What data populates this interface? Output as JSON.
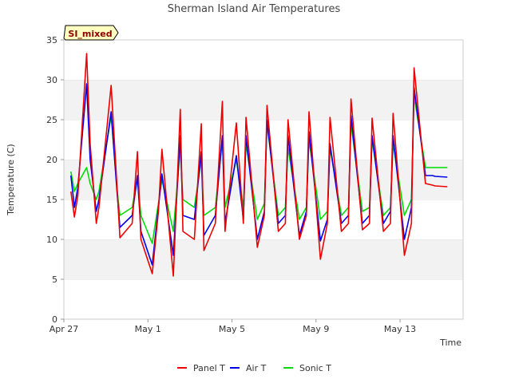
{
  "chart_data": {
    "type": "line",
    "title": "Sherman Island Air Temperatures",
    "xlabel": "Time",
    "ylabel": "Temperature (C)",
    "ylim": [
      0,
      35
    ],
    "xlim": [
      "2023-04-27",
      "2023-05-16"
    ],
    "x_ticks": [
      "Apr 27",
      "May 1",
      "May 5",
      "May 9",
      "May 13"
    ],
    "y_ticks": [
      0,
      5,
      10,
      15,
      20,
      25,
      30,
      35
    ],
    "grid": "alternating horizontal bands",
    "legend": "bottom-center",
    "badge": "SI_mixed",
    "series": [
      {
        "name": "Panel T",
        "color": "#ee0000",
        "x": [
          "2023-04-27T08:00",
          "2023-04-27T12:00",
          "2023-04-27T16:00",
          "2023-04-28T02:00",
          "2023-04-28T06:00",
          "2023-04-28T13:00",
          "2023-04-28T16:00",
          "2023-04-29T06:00",
          "2023-04-29T13:00",
          "2023-04-29T16:00",
          "2023-04-30T06:00",
          "2023-04-30T12:00",
          "2023-04-30T16:00",
          "2023-05-01T05:00",
          "2023-05-01T12:00",
          "2023-05-01T16:00",
          "2023-05-02T05:00",
          "2023-05-02T13:00",
          "2023-05-02T16:00",
          "2023-05-03T05:00",
          "2023-05-03T13:00",
          "2023-05-03T16:00",
          "2023-05-04T05:00",
          "2023-05-04T13:00",
          "2023-05-04T16:00",
          "2023-05-05T05:00",
          "2023-05-05T13:00",
          "2023-05-05T16:00",
          "2023-05-06T05:00",
          "2023-05-06T13:00",
          "2023-05-06T16:00",
          "2023-05-07T05:00",
          "2023-05-07T13:00",
          "2023-05-07T16:00",
          "2023-05-08T05:00",
          "2023-05-08T13:00",
          "2023-05-08T16:00",
          "2023-05-09T05:00",
          "2023-05-09T13:00",
          "2023-05-09T16:00",
          "2023-05-10T05:00",
          "2023-05-10T13:00",
          "2023-05-10T16:00",
          "2023-05-11T05:00",
          "2023-05-11T13:00",
          "2023-05-11T16:00",
          "2023-05-12T05:00",
          "2023-05-12T13:00",
          "2023-05-12T16:00",
          "2023-05-13T05:00",
          "2023-05-13T13:00",
          "2023-05-13T16:00",
          "2023-05-14T05:00",
          "2023-05-14T13:00",
          "2023-05-14T16:00",
          "2023-05-15T06:00"
        ],
        "values": [
          16.0,
          12.8,
          15.5,
          33.3,
          22.0,
          12.0,
          14.0,
          29.3,
          16.0,
          10.2,
          12.0,
          21.0,
          10.0,
          5.7,
          13.5,
          21.3,
          5.4,
          26.3,
          11.0,
          10.0,
          24.5,
          8.6,
          12.0,
          27.3,
          11.0,
          24.6,
          12.0,
          25.3,
          9.0,
          13.0,
          26.8,
          11.0,
          12.0,
          25.0,
          10.0,
          13.0,
          26.0,
          7.5,
          12.0,
          25.3,
          11.0,
          12.0,
          27.6,
          11.2,
          12.0,
          25.2,
          11.0,
          12.0,
          25.8,
          8.0,
          12.0,
          31.5,
          17.0,
          16.8,
          16.7,
          16.6
        ]
      },
      {
        "name": "Air T",
        "color": "#0000ee",
        "x": [
          "2023-04-27T08:00",
          "2023-04-27T12:00",
          "2023-04-27T16:00",
          "2023-04-28T02:00",
          "2023-04-28T06:00",
          "2023-04-28T13:00",
          "2023-04-28T16:00",
          "2023-04-29T06:00",
          "2023-04-29T13:00",
          "2023-04-29T16:00",
          "2023-04-30T06:00",
          "2023-04-30T12:00",
          "2023-04-30T16:00",
          "2023-05-01T05:00",
          "2023-05-01T12:00",
          "2023-05-01T16:00",
          "2023-05-02T05:00",
          "2023-05-02T13:00",
          "2023-05-02T16:00",
          "2023-05-03T05:00",
          "2023-05-03T13:00",
          "2023-05-03T16:00",
          "2023-05-04T05:00",
          "2023-05-04T13:00",
          "2023-05-04T16:00",
          "2023-05-05T05:00",
          "2023-05-05T13:00",
          "2023-05-05T16:00",
          "2023-05-06T05:00",
          "2023-05-06T13:00",
          "2023-05-06T16:00",
          "2023-05-07T05:00",
          "2023-05-07T13:00",
          "2023-05-07T16:00",
          "2023-05-08T05:00",
          "2023-05-08T13:00",
          "2023-05-08T16:00",
          "2023-05-09T05:00",
          "2023-05-09T13:00",
          "2023-05-09T16:00",
          "2023-05-10T05:00",
          "2023-05-10T13:00",
          "2023-05-10T16:00",
          "2023-05-11T05:00",
          "2023-05-11T13:00",
          "2023-05-11T16:00",
          "2023-05-12T05:00",
          "2023-05-12T13:00",
          "2023-05-12T16:00",
          "2023-05-13T05:00",
          "2023-05-13T13:00",
          "2023-05-13T16:00",
          "2023-05-14T05:00",
          "2023-05-14T13:00",
          "2023-05-14T16:00",
          "2023-05-15T06:00"
        ],
        "values": [
          18.0,
          14.0,
          16.5,
          29.5,
          20.0,
          13.5,
          15.0,
          26.0,
          15.5,
          11.5,
          13.0,
          18.0,
          11.0,
          6.8,
          14.0,
          18.2,
          8.0,
          23.0,
          13.0,
          12.5,
          21.0,
          10.5,
          13.0,
          23.0,
          12.0,
          20.5,
          12.5,
          23.0,
          10.0,
          13.5,
          25.0,
          12.0,
          13.0,
          23.0,
          10.5,
          13.5,
          23.5,
          9.8,
          12.5,
          22.0,
          12.0,
          13.0,
          25.5,
          12.0,
          13.0,
          23.0,
          12.0,
          13.5,
          23.0,
          10.0,
          14.0,
          29.0,
          18.0,
          18.0,
          17.9,
          17.8
        ]
      },
      {
        "name": "Sonic T",
        "color": "#00dd00",
        "x": [
          "2023-04-27T08:00",
          "2023-04-27T12:00",
          "2023-04-27T16:00",
          "2023-04-28T02:00",
          "2023-04-28T06:00",
          "2023-04-28T13:00",
          "2023-04-28T16:00",
          "2023-04-29T06:00",
          "2023-04-29T13:00",
          "2023-04-29T16:00",
          "2023-04-30T06:00",
          "2023-04-30T12:00",
          "2023-04-30T16:00",
          "2023-05-01T05:00",
          "2023-05-01T12:00",
          "2023-05-01T16:00",
          "2023-05-02T05:00",
          "2023-05-02T13:00",
          "2023-05-02T16:00",
          "2023-05-03T05:00",
          "2023-05-03T13:00",
          "2023-05-03T16:00",
          "2023-05-04T05:00",
          "2023-05-04T13:00",
          "2023-05-04T16:00",
          "2023-05-05T05:00",
          "2023-05-05T13:00",
          "2023-05-05T16:00",
          "2023-05-06T05:00",
          "2023-05-06T13:00",
          "2023-05-06T16:00",
          "2023-05-07T05:00",
          "2023-05-07T13:00",
          "2023-05-07T16:00",
          "2023-05-08T05:00",
          "2023-05-08T13:00",
          "2023-05-08T16:00",
          "2023-05-09T05:00",
          "2023-05-09T13:00",
          "2023-05-09T16:00",
          "2023-05-10T05:00",
          "2023-05-10T13:00",
          "2023-05-10T16:00",
          "2023-05-11T05:00",
          "2023-05-11T13:00",
          "2023-05-11T16:00",
          "2023-05-12T05:00",
          "2023-05-12T13:00",
          "2023-05-12T16:00",
          "2023-05-13T05:00",
          "2023-05-13T13:00",
          "2023-05-13T16:00",
          "2023-05-14T05:00",
          "2023-05-14T13:00",
          "2023-05-14T16:00",
          "2023-05-15T06:00"
        ],
        "values": [
          18.5,
          16.0,
          17.0,
          19.0,
          17.0,
          15.0,
          16.0,
          25.5,
          16.0,
          13.0,
          14.0,
          17.5,
          13.0,
          9.5,
          14.5,
          17.5,
          11.0,
          21.5,
          15.0,
          14.0,
          20.0,
          13.0,
          14.0,
          22.5,
          14.0,
          20.0,
          14.0,
          22.0,
          12.5,
          14.5,
          24.5,
          13.0,
          14.0,
          21.5,
          12.5,
          14.0,
          22.5,
          12.5,
          13.5,
          21.5,
          13.0,
          14.0,
          24.5,
          13.5,
          14.0,
          22.5,
          13.0,
          14.0,
          22.0,
          13.0,
          15.0,
          28.0,
          19.0,
          19.0,
          19.0,
          19.0
        ]
      }
    ]
  }
}
